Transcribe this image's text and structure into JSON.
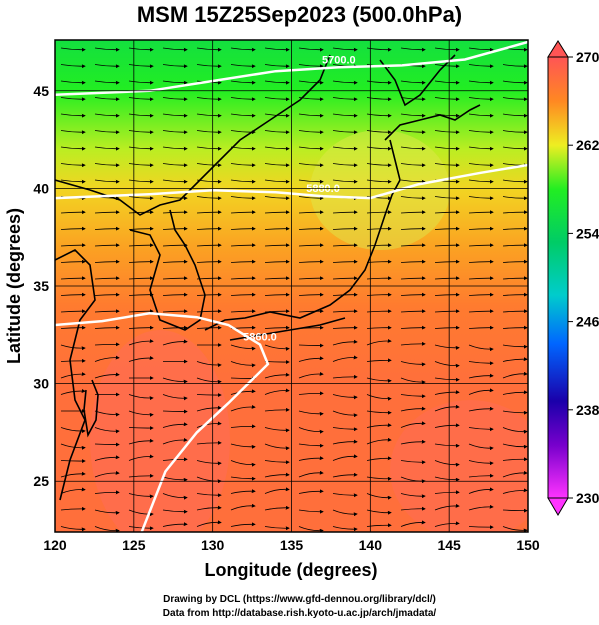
{
  "title": "MSM 15Z25Sep2023 (500.0hPa)",
  "axes": {
    "xlabel": "Longitude (degrees)",
    "ylabel": "Latitude  (degrees)",
    "x_ticks": [
      "120",
      "125",
      "130",
      "135",
      "140",
      "145",
      "150"
    ],
    "y_ticks": [
      "25",
      "30",
      "35",
      "40",
      "45"
    ],
    "xlim": [
      120,
      150
    ],
    "ylim": [
      22.4,
      47.6
    ]
  },
  "colorbar": {
    "min": 230,
    "max": 270,
    "labels": [
      "270",
      "262",
      "254",
      "246",
      "238",
      "230"
    ]
  },
  "contours": [
    {
      "label": "5700.0"
    },
    {
      "label": "5880.0"
    },
    {
      "label": "5860.0"
    }
  ],
  "credits": {
    "line1": "Drawing by DCL (https://www.gfd-dennou.org/library/dcl/)",
    "line2": "Data from http://database.rish.kyoto-u.ac.jp/arch/jmadata/"
  },
  "chart_data": {
    "type": "heatmap",
    "title": "MSM 15Z25Sep2023 (500.0hPa)",
    "xlabel": "Longitude (degrees)",
    "ylabel": "Latitude  (degrees)",
    "xlim": [
      120,
      150
    ],
    "ylim": [
      22.4,
      47.6
    ],
    "grid": true,
    "colorbar_range": [
      230,
      270
    ],
    "temperature_by_latitude": [
      {
        "lat": 47.5,
        "value": 256
      },
      {
        "lat": 45,
        "value": 258
      },
      {
        "lat": 42,
        "value": 261
      },
      {
        "lat": 40,
        "value": 263
      },
      {
        "lat": 37,
        "value": 265
      },
      {
        "lat": 34,
        "value": 267
      },
      {
        "lat": 30,
        "value": 268
      },
      {
        "lat": 25,
        "value": 268
      },
      {
        "lat": 22.4,
        "value": 268
      }
    ],
    "height_contours": [
      {
        "label": "5700.0",
        "points": [
          [
            120,
            44.8
          ],
          [
            126,
            45.0
          ],
          [
            130,
            45.5
          ],
          [
            134,
            46.0
          ],
          [
            138,
            46.2
          ],
          [
            142,
            46.3
          ],
          [
            146,
            46.6
          ],
          [
            150,
            47.5
          ]
        ]
      },
      {
        "label": "5880.0",
        "points": [
          [
            120,
            39.5
          ],
          [
            126,
            39.7
          ],
          [
            130,
            39.9
          ],
          [
            134,
            39.8
          ],
          [
            137,
            39.6
          ],
          [
            140,
            39.5
          ],
          [
            143,
            40.2
          ],
          [
            147,
            40.8
          ],
          [
            150,
            41.2
          ]
        ]
      },
      {
        "label": "5860.0",
        "points": [
          [
            120,
            33.0
          ],
          [
            123,
            33.2
          ],
          [
            126,
            33.6
          ],
          [
            129,
            33.4
          ],
          [
            131,
            33.0
          ],
          [
            133,
            32.0
          ],
          [
            133.5,
            31.0
          ],
          [
            131,
            29.0
          ],
          [
            129,
            27.5
          ],
          [
            127,
            25.5
          ],
          [
            125.5,
            22.4
          ]
        ]
      }
    ]
  }
}
